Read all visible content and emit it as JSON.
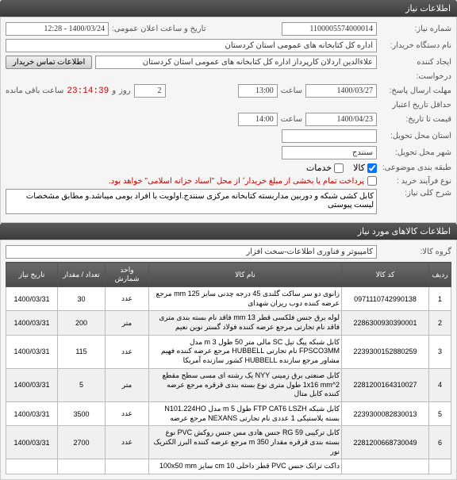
{
  "sections": {
    "need_info": "اطلاعات نیاز",
    "items_info": "اطلاعات کالاهای مورد نیاز"
  },
  "labels": {
    "need_number": "شماره نیاز:",
    "public_date": "تاریخ و ساعت اعلان عمومی:",
    "org_name": "نام دستگاه خریدار:",
    "creator": "ایجاد کننده",
    "request": "درخواست:",
    "deadline": "مهلت ارسال پاسخ:",
    "saat": "ساعت",
    "rooz": "روز",
    "remaining": "ساعت باقی مانده",
    "validity": "حداقل تاریخ اعتبار",
    "price_to": "قیمت تا تاریخ:",
    "delivery_state": "استان محل تحویل:",
    "delivery_city": "شهر محل تحویل:",
    "packaging": "طبقه بندی موضوعی:",
    "process_type": "نوع فرآیند خرید :",
    "process_note": "پرداخت تمام یا بخشی از مبلغ خریدار٬ از محل \"اسناد خزانه اسلامی\" خواهد بود.",
    "main_desc": "شرح کلی نیاز:",
    "item_group": "گروه کالا:",
    "contact_btn": "اطلاعات تماس خریدار",
    "va": "و"
  },
  "values": {
    "need_number": "1100005574000014",
    "public_date": "1400/03/24 - 12:28",
    "org_name": "اداره کل کتابخانه های عمومی استان کردستان",
    "creator": "علاءالدین اردلان کارپرداز اداره کل کتابخانه های عمومی استان کردستان",
    "deadline_date": "1400/03/27",
    "deadline_time": "13:00",
    "days": "2",
    "timer": "23:14:39",
    "validity_date": "1400/04/23",
    "validity_time": "14:00",
    "city": "سنندج",
    "main_desc": "کابل کشی شبکه و دوربین مداربسته کتابخانه مرکزی سنندج.اولویت با افراد بومی میباشد.و مطابق مشخصات لیست پیوستی",
    "item_group": "کامپیوتر و فناوری اطلاعات-سخت افزار"
  },
  "checkboxes": {
    "kala": "کالا",
    "khadamat": "خدمات"
  },
  "table": {
    "headers": [
      "ردیف",
      "کد کالا",
      "نام کالا",
      "واحد شمارش",
      "تعداد / مقدار",
      "تاریخ نیاز"
    ],
    "rows": [
      {
        "n": "1",
        "code": "0971110742990138",
        "desc": "زانوی دو سر ساکت گلندی 45 درجه چدنی سایز 125 mm مرجع عرضه کننده دوب ریزان شهدای",
        "unit": "عدد",
        "qty": "30",
        "date": "1400/03/31"
      },
      {
        "n": "2",
        "code": "2286300930390001",
        "desc": "لوله برق جنس فلکسی قطر 13 mm فاقد نام بسته بندی متری فاقد نام تجارتی مرجع عرضه کننده فولاد گستر نوین نعیم",
        "unit": "متر",
        "qty": "200",
        "date": "1400/03/31"
      },
      {
        "n": "3",
        "code": "2239300152880259",
        "desc": "کابل شبکه پیگ تیل SC مالی متر 50 طول 3 m مدل FPSCO3MM نام تجارتی HUBBELL مرجع عرضه کننده فهیم مشاور مرجع سازنده HUBBELL کشور سازنده آمریکا",
        "unit": "عدد",
        "qty": "115",
        "date": "1400/03/31"
      },
      {
        "n": "4",
        "code": "2281200164310027",
        "desc": "کابل صنعتی برق زمینی NYY یک رشته ای مسی سطح مقطع 1x16 mm^2 طول متری نوع بسته بندی قرقره مرجع عرضه کننده کابل متال",
        "unit": "متر",
        "qty": "5",
        "date": "1400/03/31"
      },
      {
        "n": "5",
        "code": "2239300082830013",
        "desc": "کابل شبکه FTP CAT6 LSZH طول 5 m مدل N101.224HO بسته پلاستیکی 1 عددی نام تجارتی NEXANS مرجع عرضه",
        "unit": "عدد",
        "qty": "3500",
        "date": "1400/03/31"
      },
      {
        "n": "6",
        "code": "2281200668730049",
        "desc": "کابل ترکیبی RG 59 جنس هادی مس جنس روکش PVC نوع بسته بندی قرقره مقدار 350 m مرجع عرضه کننده البرز الکتریک نور",
        "unit": "عدد",
        "qty": "2700",
        "date": "1400/03/31"
      },
      {
        "n": "",
        "code": "",
        "desc": "داکت ترانک جنس PVC قطر داخلی 10 cm سایز 100x50 mm",
        "unit": "",
        "qty": "",
        "date": ""
      }
    ]
  }
}
